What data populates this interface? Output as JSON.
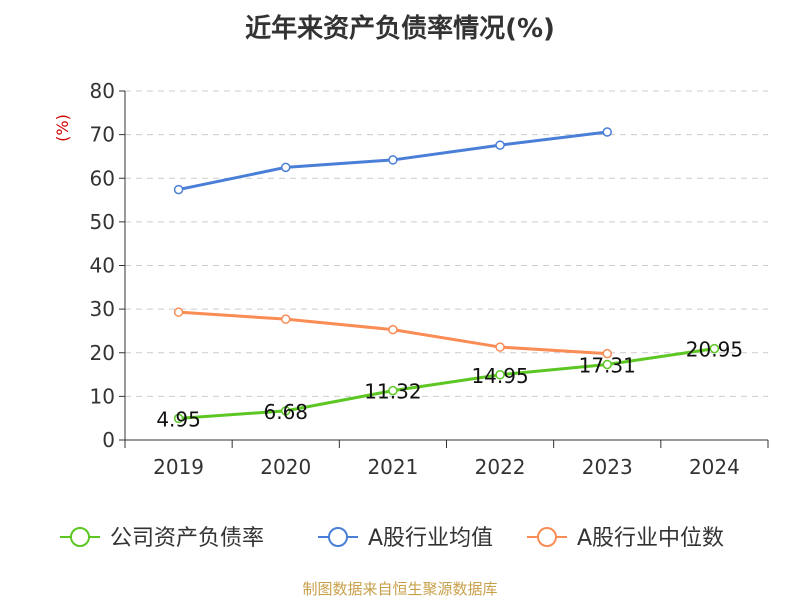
{
  "chart_data": {
    "type": "line",
    "title": "近年来资产负债率情况(%)",
    "ylabel": "(%)",
    "categories": [
      "2019",
      "2020",
      "2021",
      "2022",
      "2023",
      "2024"
    ],
    "ylim": [
      0,
      80
    ],
    "yticks": [
      "0",
      "10",
      "20",
      "30",
      "40",
      "50",
      "60",
      "70",
      "80"
    ],
    "grid": true,
    "legend_position": "bottom",
    "series": [
      {
        "name": "公司资产负债率",
        "color": "#5cc623",
        "values": [
          4.95,
          6.68,
          11.32,
          14.95,
          17.31,
          20.95
        ],
        "labels": [
          "4.95",
          "6.68",
          "11.32",
          "14.95",
          "17.31",
          "20.95"
        ]
      },
      {
        "name": "A股行业均值",
        "color": "#4a7fd8",
        "values": [
          57.4,
          62.5,
          64.2,
          67.6,
          70.6,
          null
        ]
      },
      {
        "name": "A股行业中位数",
        "color": "#fa8c55",
        "values": [
          29.3,
          27.7,
          25.3,
          21.3,
          19.8,
          null
        ]
      }
    ]
  },
  "source": "制图数据来自恒生聚源数据库"
}
